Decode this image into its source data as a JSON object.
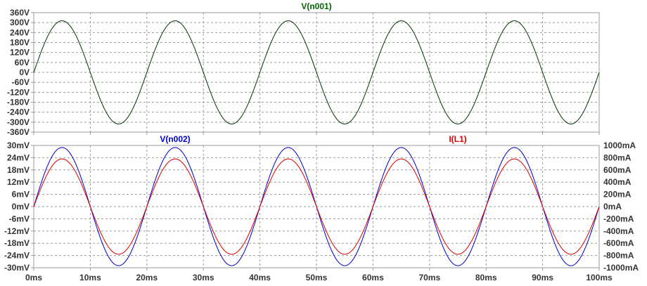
{
  "chart_data": [
    {
      "type": "line",
      "title": "V(n001)",
      "title_color": "#006400",
      "x_range": [
        0,
        100
      ],
      "x_unit": "ms",
      "y_range": [
        -360,
        360
      ],
      "y_ticks": [
        "360V",
        "300V",
        "240V",
        "180V",
        "120V",
        "60V",
        "0V",
        "-60V",
        "-120V",
        "-180V",
        "-240V",
        "-300V",
        "-360V"
      ],
      "grid": true,
      "series": [
        {
          "name": "V(n001)",
          "color": "#003300",
          "amplitude": 311,
          "frequency_hz": 50,
          "unit": "V"
        }
      ]
    },
    {
      "type": "line",
      "x_range": [
        0,
        100
      ],
      "x_unit": "ms",
      "x_ticks": [
        "0ms",
        "10ms",
        "20ms",
        "30ms",
        "40ms",
        "50ms",
        "60ms",
        "70ms",
        "80ms",
        "90ms",
        "100ms"
      ],
      "y_left_range": [
        -30,
        30
      ],
      "y_left_ticks": [
        "30mV",
        "24mV",
        "18mV",
        "12mV",
        "6mV",
        "0mV",
        "-6mV",
        "-12mV",
        "-18mV",
        "-24mV",
        "-30mV"
      ],
      "y_right_range": [
        -1000,
        1000
      ],
      "y_right_ticks": [
        "1000mA",
        "800mA",
        "600mA",
        "400mA",
        "200mA",
        "0mA",
        "-200mA",
        "-400mA",
        "-600mA",
        "-800mA",
        "-1000mA"
      ],
      "grid": true,
      "series": [
        {
          "name": "V(n002)",
          "color": "#0000cc",
          "amplitude": 29,
          "frequency_hz": 50,
          "unit": "mV",
          "axis": "left"
        },
        {
          "name": "I(L1)",
          "color": "#dd0000",
          "amplitude": 780,
          "frequency_hz": 50,
          "unit": "mA",
          "axis": "right"
        }
      ]
    }
  ],
  "colors": {
    "axis_frame": "#999999",
    "grid": "#999999",
    "tick_text": "#333333"
  }
}
